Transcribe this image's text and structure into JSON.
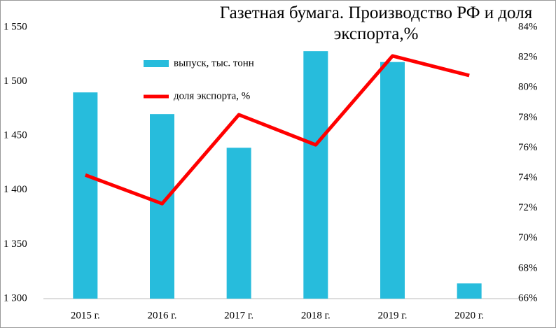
{
  "chart_data": {
    "type": "bar-line",
    "title": "Газетная бумага. Производство РФ и доля экспорта,%",
    "categories": [
      "2015 г.",
      "2016 г.",
      "2017 г.",
      "2018 г.",
      "2019 г.",
      "2020 г."
    ],
    "series": [
      {
        "name": "выпуск, тыс. тонн",
        "type": "bar",
        "color": "#27bcdc",
        "axis": "y",
        "values": [
          1490,
          1470,
          1439,
          1528,
          1518,
          1314
        ]
      },
      {
        "name": "доля экспорта, %",
        "type": "line",
        "color": "#ff0000",
        "axis": "y2",
        "values": [
          74.2,
          72.3,
          78.2,
          76.2,
          82.1,
          80.8
        ]
      }
    ],
    "ylim": [
      1300,
      1550
    ],
    "yticks": [
      {
        "value": 1300,
        "label": "1 300"
      },
      {
        "value": 1350,
        "label": "1 350"
      },
      {
        "value": 1400,
        "label": "1 400"
      },
      {
        "value": 1450,
        "label": "1 450"
      },
      {
        "value": 1500,
        "label": "1 500"
      },
      {
        "value": 1550,
        "label": "1 550"
      }
    ],
    "y2lim": [
      66,
      84
    ],
    "y2ticks": [
      {
        "value": 66,
        "label": "66%"
      },
      {
        "value": 68,
        "label": "68%"
      },
      {
        "value": 70,
        "label": "70%"
      },
      {
        "value": 72,
        "label": "72%"
      },
      {
        "value": 74,
        "label": "74%"
      },
      {
        "value": 76,
        "label": "76%"
      },
      {
        "value": 78,
        "label": "78%"
      },
      {
        "value": 80,
        "label": "80%"
      },
      {
        "value": 82,
        "label": "82%"
      },
      {
        "value": 84,
        "label": "84%"
      }
    ],
    "grid": false
  }
}
